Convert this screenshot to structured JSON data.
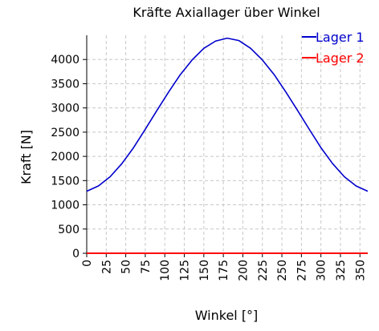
{
  "chart_data": {
    "type": "line",
    "title": "Kräfte Axiallager über Winkel",
    "xlabel": "Winkel [°]",
    "ylabel": "Kraft [N]",
    "xlim": [
      0,
      360
    ],
    "ylim": [
      0,
      4500
    ],
    "xticks": [
      0,
      25,
      50,
      75,
      100,
      125,
      150,
      175,
      200,
      225,
      250,
      275,
      300,
      325,
      350
    ],
    "yticks": [
      0,
      500,
      1000,
      1500,
      2000,
      2500,
      3000,
      3500,
      4000
    ],
    "xtick_labels": [
      "0",
      "25",
      "50",
      "75",
      "100",
      "125",
      "150",
      "175",
      "200",
      "225",
      "250",
      "275",
      "300",
      "325",
      "350"
    ],
    "ytick_labels": [
      "0",
      "500",
      "1000",
      "1500",
      "2000",
      "2500",
      "3000",
      "3500",
      "4000"
    ],
    "grid": true,
    "legend_position": "top-right",
    "series": [
      {
        "name": "Lager 1",
        "color": "#0000cc",
        "x": [
          0,
          15,
          30,
          45,
          60,
          75,
          90,
          105,
          120,
          135,
          150,
          165,
          180,
          195,
          210,
          225,
          240,
          255,
          270,
          285,
          300,
          315,
          330,
          345,
          360
        ],
        "y": [
          1280,
          1390,
          1580,
          1850,
          2180,
          2560,
          2950,
          3330,
          3690,
          3990,
          4230,
          4380,
          4440,
          4390,
          4230,
          3990,
          3690,
          3330,
          2950,
          2560,
          2180,
          1850,
          1580,
          1390,
          1280
        ]
      },
      {
        "name": "Lager 2",
        "color": "#ff0000",
        "x": [
          0,
          360
        ],
        "y": [
          0,
          0
        ]
      }
    ]
  }
}
